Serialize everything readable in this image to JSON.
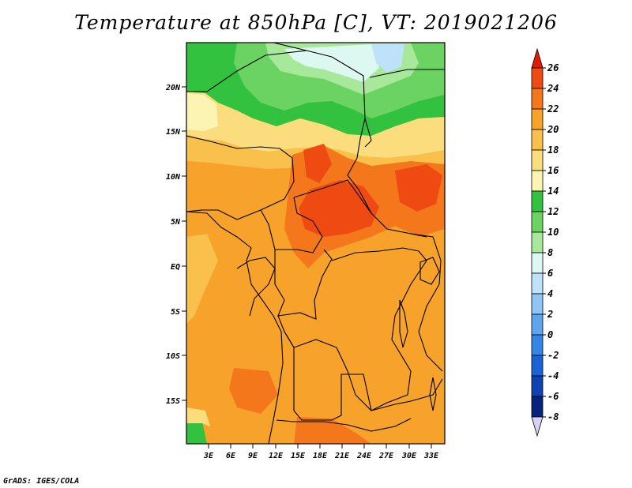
{
  "title": "Temperature at 850hPa [C], VT: 2019021206",
  "footer": "GrADS: IGES/COLA",
  "lat_labels": [
    "20N",
    "15N",
    "10N",
    "5N",
    "EQ",
    "5S",
    "10S",
    "15S"
  ],
  "lon_labels": [
    "3E",
    "6E",
    "9E",
    "12E",
    "15E",
    "18E",
    "21E",
    "24E",
    "27E",
    "30E",
    "33E"
  ],
  "colorbar": {
    "labels": [
      "26",
      "24",
      "22",
      "20",
      "18",
      "16",
      "14",
      "12",
      "10",
      "8",
      "6",
      "4",
      "2",
      "0",
      "-2",
      "-4",
      "-6",
      "-8"
    ],
    "colors": [
      "#e31a0a",
      "#ee4a12",
      "#f4781b",
      "#f7a22a",
      "#f9c14b",
      "#fbdd7e",
      "#fbf4b2",
      "#33c23f",
      "#6ad362",
      "#a8e89a",
      "#dcf8f0",
      "#bde2f9",
      "#8ec6f5",
      "#5ea5ee",
      "#3486e6",
      "#1a63d4",
      "#0f43b4",
      "#08237e",
      "#d7d1f2"
    ]
  }
}
